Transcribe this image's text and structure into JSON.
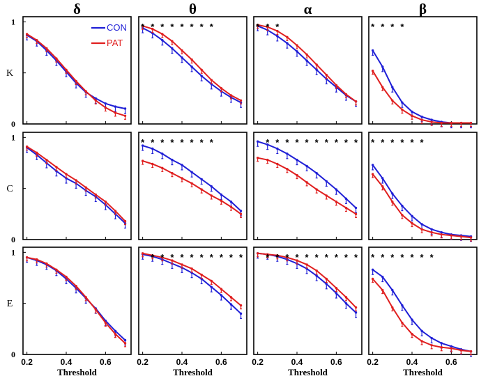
{
  "chart_data": {
    "type": "line",
    "bands": [
      "δ",
      "θ",
      "α",
      "β"
    ],
    "rows": [
      "K",
      "C",
      "E"
    ],
    "xlabel": "Threshold",
    "xlim": [
      0.18,
      0.73
    ],
    "ylim": [
      0,
      1.05
    ],
    "xticks": [
      0.2,
      0.4,
      0.6
    ],
    "xtick_labels": [
      "0.2",
      "0.4",
      "0.6"
    ],
    "yticks": [
      0,
      0.5,
      1
    ],
    "ytick_labels": [
      "0",
      "",
      "1"
    ],
    "x": [
      0.2,
      0.25,
      0.3,
      0.35,
      0.4,
      0.45,
      0.5,
      0.55,
      0.6,
      0.65,
      0.7
    ],
    "series_names": [
      "CON",
      "PAT"
    ],
    "colors": {
      "CON": "#1f1fd6",
      "PAT": "#e01f1f"
    },
    "legend": {
      "location": "top-right",
      "panel": "K-δ"
    },
    "significance_symbol": "*",
    "panels": [
      {
        "row": "K",
        "band": "δ",
        "stars": 0,
        "CON": [
          0.87,
          0.81,
          0.72,
          0.62,
          0.51,
          0.4,
          0.31,
          0.25,
          0.2,
          0.17,
          0.15
        ],
        "PAT": [
          0.88,
          0.82,
          0.74,
          0.64,
          0.53,
          0.42,
          0.32,
          0.23,
          0.16,
          0.11,
          0.08
        ]
      },
      {
        "row": "K",
        "band": "θ",
        "stars": 8,
        "CON": [
          0.94,
          0.89,
          0.82,
          0.74,
          0.65,
          0.56,
          0.47,
          0.39,
          0.32,
          0.26,
          0.21
        ],
        "PAT": [
          0.96,
          0.93,
          0.88,
          0.81,
          0.72,
          0.63,
          0.53,
          0.43,
          0.35,
          0.28,
          0.23
        ]
      },
      {
        "row": "K",
        "band": "α",
        "stars": 3,
        "CON": [
          0.96,
          0.92,
          0.86,
          0.79,
          0.71,
          0.62,
          0.53,
          0.44,
          0.36,
          0.28,
          0.22
        ],
        "PAT": [
          0.97,
          0.95,
          0.91,
          0.85,
          0.77,
          0.68,
          0.58,
          0.48,
          0.38,
          0.29,
          0.22
        ]
      },
      {
        "row": "K",
        "band": "β",
        "stars": 4,
        "CON": [
          0.72,
          0.56,
          0.36,
          0.21,
          0.12,
          0.07,
          0.04,
          0.02,
          0.01,
          0.01,
          0.01
        ],
        "PAT": [
          0.52,
          0.36,
          0.23,
          0.14,
          0.08,
          0.04,
          0.02,
          0.01,
          0.01,
          0.01,
          0.01
        ]
      },
      {
        "row": "C",
        "band": "δ",
        "stars": 0,
        "CON": [
          0.9,
          0.83,
          0.75,
          0.67,
          0.6,
          0.55,
          0.48,
          0.42,
          0.34,
          0.25,
          0.16
        ],
        "PAT": [
          0.91,
          0.85,
          0.78,
          0.71,
          0.64,
          0.58,
          0.51,
          0.44,
          0.37,
          0.28,
          0.18
        ]
      },
      {
        "row": "C",
        "band": "θ",
        "stars": 8,
        "CON": [
          0.92,
          0.89,
          0.84,
          0.78,
          0.73,
          0.66,
          0.59,
          0.52,
          0.44,
          0.37,
          0.28
        ],
        "PAT": [
          0.77,
          0.74,
          0.7,
          0.65,
          0.6,
          0.55,
          0.49,
          0.43,
          0.38,
          0.32,
          0.25
        ]
      },
      {
        "row": "C",
        "band": "α",
        "stars": 10,
        "CON": [
          0.96,
          0.93,
          0.89,
          0.84,
          0.78,
          0.72,
          0.65,
          0.57,
          0.49,
          0.4,
          0.31
        ],
        "PAT": [
          0.8,
          0.78,
          0.74,
          0.69,
          0.63,
          0.56,
          0.49,
          0.43,
          0.37,
          0.31,
          0.25
        ]
      },
      {
        "row": "C",
        "band": "β",
        "stars": 6,
        "CON": [
          0.73,
          0.6,
          0.45,
          0.33,
          0.23,
          0.15,
          0.1,
          0.07,
          0.05,
          0.04,
          0.03
        ],
        "PAT": [
          0.64,
          0.52,
          0.37,
          0.24,
          0.16,
          0.1,
          0.07,
          0.05,
          0.04,
          0.03,
          0.02
        ]
      },
      {
        "row": "E",
        "band": "δ",
        "stars": 0,
        "CON": [
          0.95,
          0.92,
          0.88,
          0.82,
          0.74,
          0.65,
          0.55,
          0.45,
          0.33,
          0.23,
          0.14
        ],
        "PAT": [
          0.95,
          0.93,
          0.89,
          0.83,
          0.76,
          0.67,
          0.56,
          0.44,
          0.31,
          0.2,
          0.11
        ]
      },
      {
        "row": "E",
        "band": "θ",
        "stars": 10,
        "CON": [
          0.98,
          0.96,
          0.93,
          0.89,
          0.85,
          0.8,
          0.74,
          0.66,
          0.58,
          0.49,
          0.4
        ],
        "PAT": [
          0.99,
          0.97,
          0.95,
          0.92,
          0.88,
          0.84,
          0.78,
          0.72,
          0.64,
          0.56,
          0.48
        ]
      },
      {
        "row": "E",
        "band": "α",
        "stars": 10,
        "CON": [
          0.99,
          0.98,
          0.96,
          0.93,
          0.89,
          0.84,
          0.77,
          0.69,
          0.6,
          0.5,
          0.41
        ],
        "PAT": [
          0.99,
          0.98,
          0.97,
          0.95,
          0.92,
          0.88,
          0.82,
          0.74,
          0.65,
          0.56,
          0.46
        ]
      },
      {
        "row": "E",
        "band": "β",
        "stars": 7,
        "CON": [
          0.83,
          0.76,
          0.63,
          0.48,
          0.34,
          0.23,
          0.16,
          0.11,
          0.08,
          0.05,
          0.03
        ],
        "PAT": [
          0.74,
          0.63,
          0.46,
          0.31,
          0.2,
          0.13,
          0.09,
          0.07,
          0.06,
          0.04,
          0.03
        ]
      }
    ]
  }
}
